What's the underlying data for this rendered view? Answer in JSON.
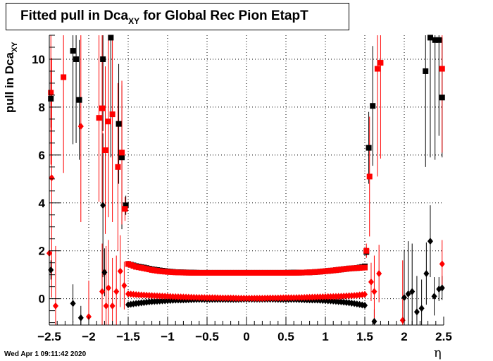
{
  "title": {
    "main": "Fitted pull in Dca",
    "sub": "XY",
    "rest": " for Global Rec Pion EtapT"
  },
  "ylabel": {
    "main": "pull in Dca",
    "sub": "XY"
  },
  "xlabel": "η",
  "footer": "Wed Apr  1 09:11:42 2020",
  "chart_data": {
    "type": "scatter",
    "xlim": [
      -2.5,
      2.5
    ],
    "ylim": [
      -1.1,
      11.0
    ],
    "grid": true,
    "xticks": [
      -2.5,
      -2,
      -1.5,
      -1,
      -0.5,
      0,
      0.5,
      1,
      1.5,
      2,
      2.5
    ],
    "xtick_labels": [
      "−2.5",
      "−2",
      "−1.5",
      "−1",
      "−0.5",
      "0",
      "0.5",
      "1",
      "1.5",
      "2",
      "2.5"
    ],
    "yticks": [
      0,
      2,
      4,
      6,
      8,
      10
    ],
    "ytick_labels": [
      "0",
      "2",
      "4",
      "6",
      "8",
      "10"
    ],
    "series": [
      {
        "marker": "square",
        "color": "#000000",
        "points": [
          [
            -2.48,
            8.35,
            1.2
          ],
          [
            -2.2,
            10.35,
            3.9
          ],
          [
            -2.16,
            10.0,
            3.5
          ],
          [
            -2.12,
            8.3,
            2.5
          ],
          [
            -1.82,
            10.0,
            3.0
          ],
          [
            -1.72,
            10.9,
            5.0
          ],
          [
            -1.62,
            7.3,
            2.5
          ],
          [
            -1.58,
            5.9,
            3.0
          ],
          [
            -1.53,
            3.9,
            0.4
          ],
          [
            1.52,
            1.95,
            0.2
          ],
          [
            1.55,
            6.3,
            1.5
          ],
          [
            1.6,
            8.05,
            2.5
          ],
          [
            2.27,
            9.5,
            4.0
          ],
          [
            2.33,
            10.9,
            5.0
          ],
          [
            2.39,
            10.8,
            5.0
          ],
          [
            2.44,
            10.8,
            4.0
          ],
          [
            2.48,
            8.4,
            2.5
          ]
        ],
        "band": {
          "x": [
            -1.5,
            -1.4,
            -1.3,
            -1.2,
            -1.1,
            -1.0,
            -0.9,
            -0.8,
            -0.7,
            -0.6,
            -0.5,
            -0.4,
            -0.3,
            -0.2,
            -0.1,
            0.0,
            0.1,
            0.2,
            0.3,
            0.4,
            0.5,
            0.6,
            0.7,
            0.8,
            0.9,
            1.0,
            1.1,
            1.2,
            1.3,
            1.4,
            1.5
          ],
          "y": [
            1.45,
            1.36,
            1.3,
            1.23,
            1.18,
            1.14,
            1.11,
            1.1,
            1.09,
            1.08,
            1.08,
            1.08,
            1.08,
            1.08,
            1.08,
            1.08,
            1.08,
            1.08,
            1.08,
            1.08,
            1.08,
            1.09,
            1.09,
            1.1,
            1.12,
            1.15,
            1.18,
            1.22,
            1.26,
            1.28,
            1.35
          ]
        }
      },
      {
        "marker": "diamond",
        "color": "#000000",
        "points": [
          [
            -2.48,
            1.2,
            0.4
          ],
          [
            -2.2,
            -0.2,
            0.8
          ],
          [
            -2.1,
            -0.8,
            0.5
          ],
          [
            -1.82,
            3.9,
            3.0
          ],
          [
            -1.8,
            1.1,
            1.0
          ],
          [
            2.0,
            0.05,
            2.0
          ],
          [
            2.05,
            0.2,
            2.2
          ],
          [
            2.1,
            0.3,
            2.0
          ],
          [
            2.16,
            -0.55,
            1.5
          ],
          [
            2.22,
            -0.4,
            1.2
          ],
          [
            2.28,
            1.05,
            1.3
          ],
          [
            2.33,
            2.4,
            1.5
          ],
          [
            2.38,
            0.1,
            0.8
          ],
          [
            2.44,
            0.4,
            0.5
          ],
          [
            2.48,
            0.45,
            0.5
          ],
          [
            1.62,
            -0.95,
            0.5
          ]
        ],
        "band": {
          "x": [
            -1.5,
            -1.4,
            -1.3,
            -1.2,
            -1.1,
            -1.0,
            -0.9,
            -0.8,
            -0.7,
            -0.6,
            -0.5,
            -0.4,
            -0.3,
            -0.2,
            -0.1,
            0.0,
            0.1,
            0.2,
            0.3,
            0.4,
            0.5,
            0.6,
            0.7,
            0.8,
            0.9,
            1.0,
            1.1,
            1.2,
            1.3,
            1.4,
            1.5
          ],
          "y": [
            -0.25,
            -0.2,
            -0.16,
            -0.12,
            -0.1,
            -0.08,
            -0.06,
            -0.05,
            -0.04,
            -0.03,
            -0.03,
            -0.03,
            -0.03,
            -0.03,
            -0.03,
            -0.02,
            -0.02,
            -0.02,
            -0.02,
            -0.03,
            -0.03,
            -0.03,
            -0.04,
            -0.05,
            -0.06,
            -0.08,
            -0.1,
            -0.13,
            -0.17,
            -0.22,
            -0.28
          ]
        }
      },
      {
        "marker": "square",
        "color": "#ff0000",
        "points": [
          [
            -2.48,
            8.6,
            3.0
          ],
          [
            -2.32,
            9.25,
            4.0
          ],
          [
            -1.87,
            7.55,
            3.5
          ],
          [
            -1.83,
            7.95,
            4.0
          ],
          [
            -1.79,
            6.2,
            3.5
          ],
          [
            -1.75,
            7.4,
            4.0
          ],
          [
            -1.7,
            7.7,
            4.5
          ],
          [
            -1.63,
            5.5,
            3.5
          ],
          [
            -1.58,
            6.1,
            3.0
          ],
          [
            -1.54,
            3.75,
            0.5
          ],
          [
            1.52,
            2.0,
            0.3
          ],
          [
            1.56,
            5.1,
            2.5
          ],
          [
            1.66,
            9.6,
            4.5
          ],
          [
            1.7,
            9.85,
            4.0
          ],
          [
            2.48,
            9.6,
            3.5
          ]
        ],
        "band": {
          "x": [
            -1.5,
            -1.4,
            -1.3,
            -1.2,
            -1.1,
            -1.0,
            -0.9,
            -0.8,
            -0.7,
            -0.6,
            -0.5,
            -0.4,
            -0.3,
            -0.2,
            -0.1,
            0.0,
            0.1,
            0.2,
            0.3,
            0.4,
            0.5,
            0.6,
            0.7,
            0.8,
            0.9,
            1.0,
            1.1,
            1.2,
            1.3,
            1.4,
            1.5
          ],
          "y": [
            1.45,
            1.33,
            1.27,
            1.2,
            1.15,
            1.12,
            1.1,
            1.09,
            1.08,
            1.08,
            1.08,
            1.08,
            1.08,
            1.08,
            1.08,
            1.08,
            1.08,
            1.08,
            1.08,
            1.08,
            1.08,
            1.08,
            1.09,
            1.1,
            1.12,
            1.15,
            1.18,
            1.22,
            1.26,
            1.28,
            1.3
          ]
        }
      },
      {
        "marker": "diamond",
        "color": "#ff0000",
        "points": [
          [
            -2.5,
            1.9,
            3.0
          ],
          [
            -2.47,
            5.05,
            5.0
          ],
          [
            -2.42,
            -0.3,
            2.5
          ],
          [
            -2.1,
            7.2,
            4.0
          ],
          [
            -2.0,
            -0.75,
            1.5
          ],
          [
            -1.83,
            0.3,
            2.0
          ],
          [
            -1.78,
            -0.3,
            2.5
          ],
          [
            -1.75,
            0.45,
            2.0
          ],
          [
            -1.7,
            -0.3,
            2.0
          ],
          [
            -1.65,
            0.3,
            1.5
          ],
          [
            -1.6,
            1.15,
            1.5
          ],
          [
            -1.55,
            0.55,
            1.0
          ],
          [
            1.58,
            0.7,
            0.8
          ],
          [
            1.62,
            0.3,
            1.5
          ],
          [
            1.68,
            1.05,
            1.2
          ],
          [
            1.98,
            -0.9,
            2.5
          ],
          [
            2.48,
            1.45,
            1.0
          ]
        ],
        "band": {
          "x": [
            -1.5,
            -1.4,
            -1.3,
            -1.2,
            -1.1,
            -1.0,
            -0.9,
            -0.8,
            -0.7,
            -0.6,
            -0.5,
            -0.4,
            -0.3,
            -0.2,
            -0.1,
            0.0,
            0.1,
            0.2,
            0.3,
            0.4,
            0.5,
            0.6,
            0.7,
            0.8,
            0.9,
            1.0,
            1.1,
            1.2,
            1.3,
            1.4,
            1.5
          ],
          "y": [
            0.2,
            0.17,
            0.15,
            0.13,
            0.11,
            0.1,
            0.08,
            0.07,
            0.06,
            0.05,
            0.04,
            0.04,
            0.03,
            0.03,
            0.02,
            0.02,
            0.02,
            0.02,
            0.03,
            0.03,
            0.04,
            0.04,
            0.05,
            0.06,
            0.07,
            0.08,
            0.09,
            0.1,
            0.12,
            0.14,
            0.18
          ]
        }
      }
    ]
  }
}
